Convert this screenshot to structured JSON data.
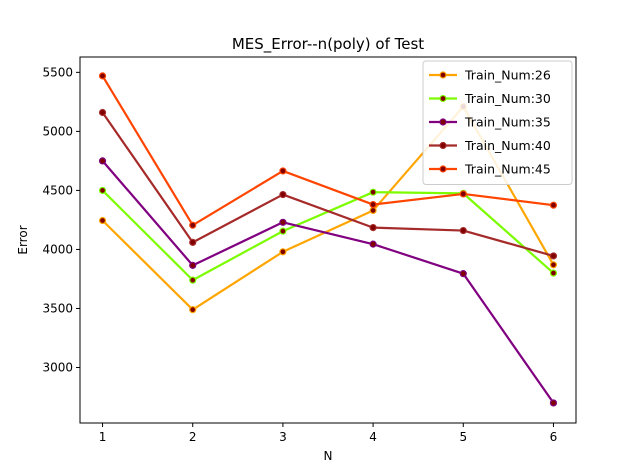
{
  "chart_data": {
    "type": "line",
    "title": "MES_Error--n(poly) of Test",
    "xlabel": "N",
    "ylabel": "Error",
    "x": [
      1,
      2,
      3,
      4,
      5,
      6
    ],
    "xlim": [
      0.75,
      6.25
    ],
    "ylim": [
      2530,
      5630
    ],
    "xticks": [
      1,
      2,
      3,
      4,
      5,
      6
    ],
    "yticks": [
      3000,
      3500,
      4000,
      4500,
      5000,
      5500
    ],
    "grid": false,
    "legend_position": "top-right",
    "series": [
      {
        "name": "Train_Num:26",
        "color": "#ffa500",
        "values": [
          4245,
          3490,
          3980,
          4330,
          5210,
          3870
        ]
      },
      {
        "name": "Train_Num:30",
        "color": "#7cfc00",
        "values": [
          4500,
          3740,
          4155,
          4485,
          4475,
          3800
        ]
      },
      {
        "name": "Train_Num:35",
        "color": "#800080",
        "values": [
          4750,
          3865,
          4230,
          4045,
          3795,
          2700
        ]
      },
      {
        "name": "Train_Num:40",
        "color": "#a52a2a",
        "values": [
          5160,
          4060,
          4465,
          4185,
          4160,
          3945
        ]
      },
      {
        "name": "Train_Num:45",
        "color": "#ff4500",
        "values": [
          5470,
          4205,
          4665,
          4380,
          4470,
          4375
        ]
      }
    ]
  }
}
